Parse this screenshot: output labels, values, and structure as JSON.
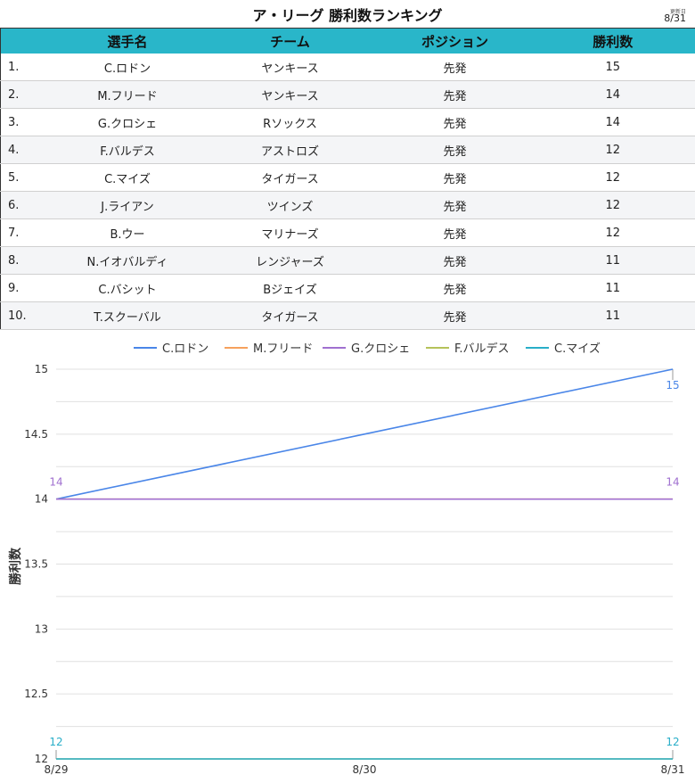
{
  "header": {
    "title": "ア・リーグ 勝利数ランキング",
    "update_caption": "更新日",
    "update_date": "8/31"
  },
  "table": {
    "columns": [
      "",
      "選手名",
      "チーム",
      "ポジション",
      "勝利数"
    ],
    "rows": [
      {
        "rank": "1.",
        "player": "C.ロドン",
        "team": "ヤンキース",
        "position": "先発",
        "wins": "15"
      },
      {
        "rank": "2.",
        "player": "M.フリード",
        "team": "ヤンキース",
        "position": "先発",
        "wins": "14"
      },
      {
        "rank": "3.",
        "player": "G.クロシェ",
        "team": "Rソックス",
        "position": "先発",
        "wins": "14"
      },
      {
        "rank": "4.",
        "player": "F.バルデス",
        "team": "アストロズ",
        "position": "先発",
        "wins": "12"
      },
      {
        "rank": "5.",
        "player": "C.マイズ",
        "team": "タイガース",
        "position": "先発",
        "wins": "12"
      },
      {
        "rank": "6.",
        "player": "J.ライアン",
        "team": "ツインズ",
        "position": "先発",
        "wins": "12"
      },
      {
        "rank": "7.",
        "player": "B.ウー",
        "team": "マリナーズ",
        "position": "先発",
        "wins": "12"
      },
      {
        "rank": "8.",
        "player": "N.イオバルディ",
        "team": "レンジャーズ",
        "position": "先発",
        "wins": "11"
      },
      {
        "rank": "9.",
        "player": "C.バシット",
        "team": "Bジェイズ",
        "position": "先発",
        "wins": "11"
      },
      {
        "rank": "10.",
        "player": "T.スクーバル",
        "team": "タイガース",
        "position": "先発",
        "wins": "11"
      }
    ]
  },
  "chart_data": {
    "type": "line",
    "x": [
      "8/29",
      "8/30",
      "8/31"
    ],
    "ylabel": "勝利数",
    "ylim": [
      12,
      15
    ],
    "yticks": [
      "12",
      "12.5",
      "13",
      "13.5",
      "14",
      "14.5",
      "15"
    ],
    "grid": true,
    "legend_position": "top",
    "series": [
      {
        "name": "C.ロドン",
        "color": "#4a86e8",
        "values": [
          14,
          14.5,
          15
        ],
        "labels": {
          "start": "",
          "end": "15"
        }
      },
      {
        "name": "M.フリード",
        "color": "#f6a15d",
        "values": [
          14,
          14,
          14
        ],
        "labels": {
          "start": "",
          "end": ""
        }
      },
      {
        "name": "G.クロシェ",
        "color": "#a070d0",
        "values": [
          14,
          14,
          14
        ],
        "labels": {
          "start": "14",
          "end": "14"
        }
      },
      {
        "name": "F.バルデス",
        "color": "#b5c25a",
        "values": [
          12,
          12,
          12
        ],
        "labels": {
          "start": "",
          "end": ""
        }
      },
      {
        "name": "C.マイズ",
        "color": "#29aec8",
        "values": [
          12,
          12,
          12
        ],
        "labels": {
          "start": "12",
          "end": "12"
        }
      }
    ]
  }
}
